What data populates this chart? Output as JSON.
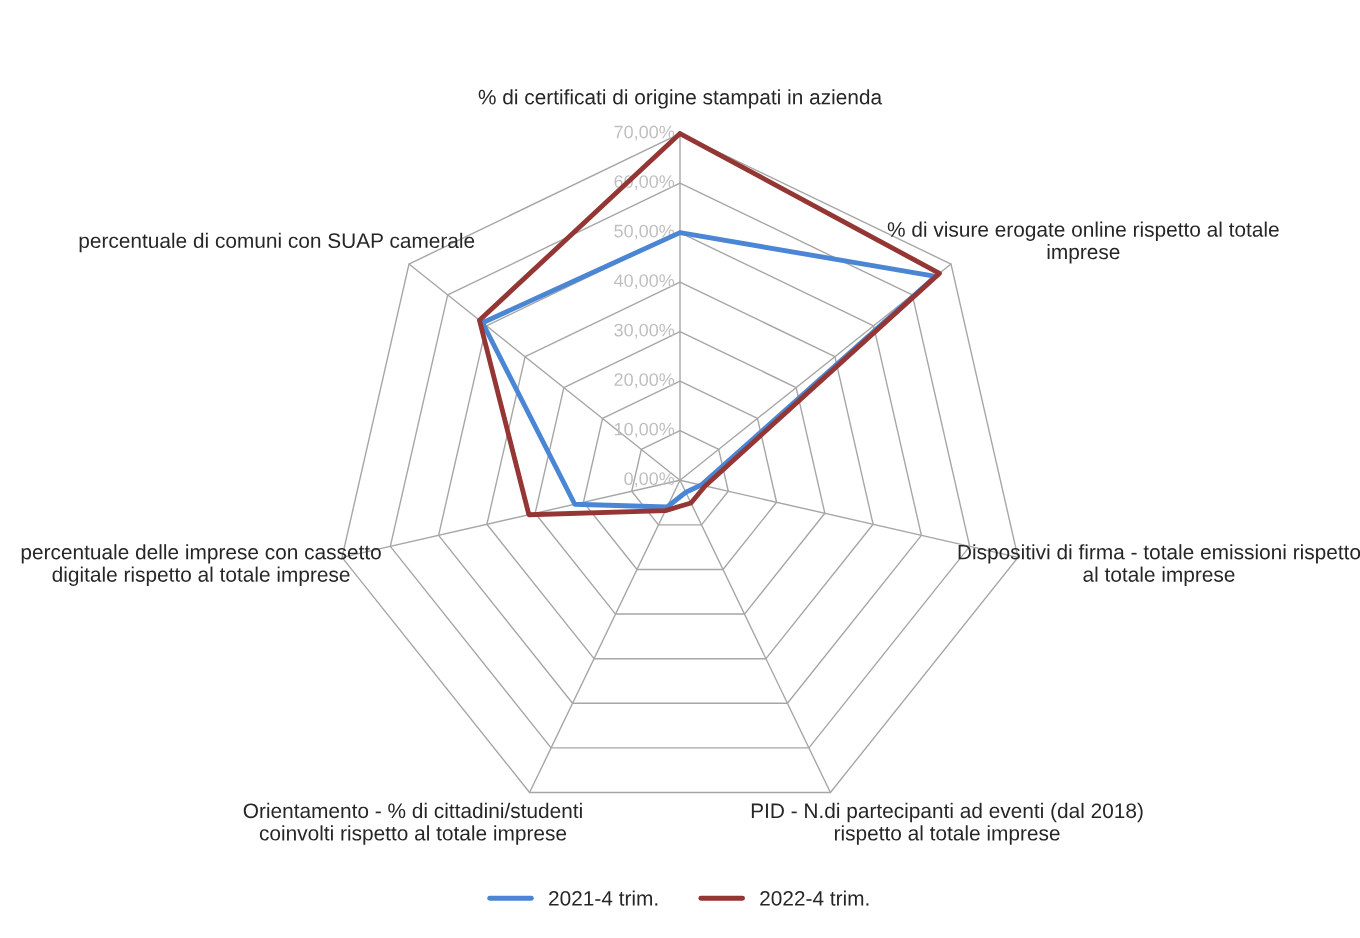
{
  "chart_data": {
    "type": "radar",
    "categories": [
      "% di certificati di origine stampati in azienda",
      "% di visure erogate online rispetto al totale imprese",
      "Dispositivi di firma - totale emissioni rispetto al totale imprese",
      "PID - N.di partecipanti ad eventi (dal 2018) rispetto al totale imprese",
      "Orientamento - % di cittadini/studenti coinvolti rispetto al totale imprese",
      "percentuale delle imprese con cassetto digitale rispetto al totale imprese",
      "percentuale di comuni con SUAP camerale"
    ],
    "series": [
      {
        "name": "2021-4 trim.",
        "color": "#4a86d4",
        "values": [
          50,
          66,
          4.4,
          2.7,
          6,
          21.8,
          51
        ]
      },
      {
        "name": "2022-4 trim.",
        "color": "#943634",
        "values": [
          70,
          67,
          5.2,
          5.1,
          6.8,
          31.3,
          51.8
        ]
      }
    ],
    "ylim": [
      0,
      70
    ],
    "yticks": [
      {
        "value": 0,
        "label": "0,00%"
      },
      {
        "value": 10,
        "label": "10,00%"
      },
      {
        "value": 20,
        "label": "20,00%"
      },
      {
        "value": 30,
        "label": "30,00%"
      },
      {
        "value": 40,
        "label": "40,00%"
      },
      {
        "value": 50,
        "label": "50,00%"
      },
      {
        "value": 60,
        "label": "60,00%"
      },
      {
        "value": 70,
        "label": "70,00%"
      }
    ],
    "grid": true,
    "legend": "bottom"
  }
}
